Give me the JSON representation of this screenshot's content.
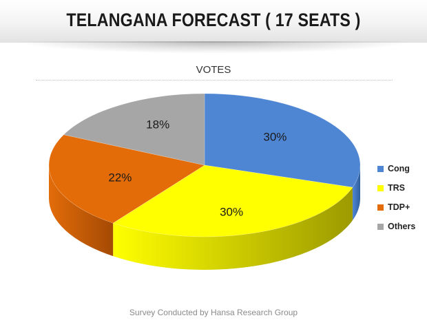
{
  "header": {
    "title": "TELANGANA FORECAST ( 17 SEATS )"
  },
  "chart_data": {
    "type": "pie",
    "title": "VOTES",
    "slices": [
      {
        "name": "Cong",
        "value": 30,
        "label": "30%",
        "color": "#4f86d4",
        "side_color": "#2f5f9c"
      },
      {
        "name": "TRS",
        "value": 30,
        "label": "30%",
        "color": "#ffff00",
        "side_color": "#9c9a00"
      },
      {
        "name": "TDP+",
        "value": 22,
        "label": "22%",
        "color": "#e36c09",
        "side_color": "#a44a04"
      },
      {
        "name": "Others",
        "value": 18,
        "label": "18%",
        "color": "#a6a6a6",
        "side_color": "#6f6f6f"
      }
    ],
    "legend_position": "right",
    "style": "3d"
  },
  "footer": {
    "source": "Survey Conducted by Hansa Research Group"
  }
}
